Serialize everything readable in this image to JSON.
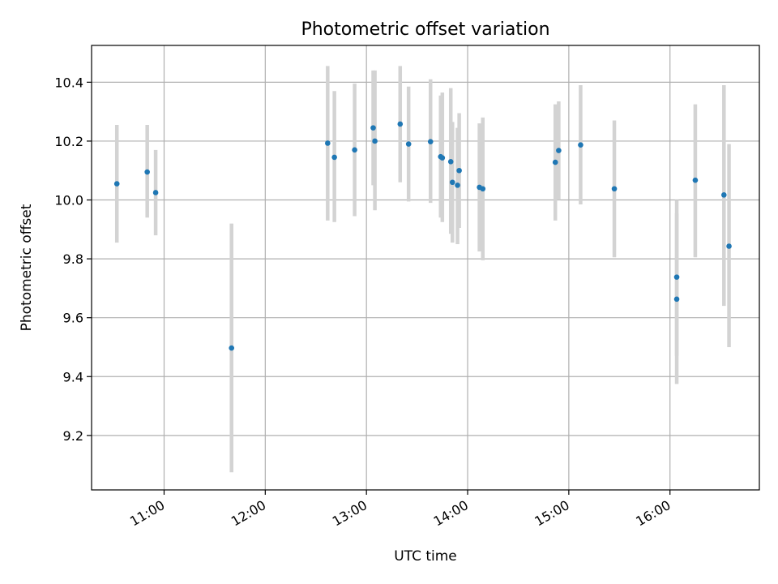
{
  "chart_data": {
    "type": "scatter",
    "title": "Photometric offset variation",
    "xlabel": "UTC time",
    "ylabel": "Photometric offset",
    "x_is_time": true,
    "xlim": [
      "10:17",
      "16:53"
    ],
    "ylim": [
      9.015,
      10.525
    ],
    "x_ticks": [
      "11:00",
      "12:00",
      "13:00",
      "14:00",
      "15:00",
      "16:00"
    ],
    "y_ticks": [
      9.2,
      9.4,
      9.6,
      9.8,
      10.0,
      10.2,
      10.4
    ],
    "y_tick_labels": [
      "9.2",
      "9.4",
      "9.6",
      "9.8",
      "10.0",
      "10.2",
      "10.4"
    ],
    "grid": true,
    "marker_color": "#1f77b4",
    "errorbar_color": "#d3d3d3",
    "points": [
      {
        "t": "10:32",
        "y": 10.055,
        "lo": 9.855,
        "hi": 10.255
      },
      {
        "t": "10:50",
        "y": 10.095,
        "lo": 9.94,
        "hi": 10.255
      },
      {
        "t": "10:55",
        "y": 10.025,
        "lo": 9.88,
        "hi": 10.17
      },
      {
        "t": "11:40",
        "y": 9.497,
        "lo": 9.075,
        "hi": 9.92
      },
      {
        "t": "12:37",
        "y": 10.193,
        "lo": 9.93,
        "hi": 10.455
      },
      {
        "t": "12:41",
        "y": 10.145,
        "lo": 9.925,
        "hi": 10.37
      },
      {
        "t": "12:53",
        "y": 10.17,
        "lo": 9.945,
        "hi": 10.395
      },
      {
        "t": "13:04",
        "y": 10.245,
        "lo": 10.05,
        "hi": 10.44
      },
      {
        "t": "13:05",
        "y": 10.2,
        "lo": 9.965,
        "hi": 10.44
      },
      {
        "t": "13:20",
        "y": 10.258,
        "lo": 10.06,
        "hi": 10.455
      },
      {
        "t": "13:25",
        "y": 10.19,
        "lo": 9.995,
        "hi": 10.385
      },
      {
        "t": "13:38",
        "y": 10.198,
        "lo": 9.99,
        "hi": 10.41
      },
      {
        "t": "13:44",
        "y": 10.147,
        "lo": 9.94,
        "hi": 10.355
      },
      {
        "t": "13:45",
        "y": 10.143,
        "lo": 9.925,
        "hi": 10.365
      },
      {
        "t": "13:50",
        "y": 10.13,
        "lo": 9.885,
        "hi": 10.38
      },
      {
        "t": "13:51",
        "y": 10.06,
        "lo": 9.855,
        "hi": 10.265
      },
      {
        "t": "13:54",
        "y": 10.05,
        "lo": 9.85,
        "hi": 10.245
      },
      {
        "t": "13:55",
        "y": 10.1,
        "lo": 9.905,
        "hi": 10.295
      },
      {
        "t": "14:07",
        "y": 10.043,
        "lo": 9.825,
        "hi": 10.26
      },
      {
        "t": "14:09",
        "y": 10.038,
        "lo": 9.795,
        "hi": 10.28
      },
      {
        "t": "14:52",
        "y": 10.128,
        "lo": 9.93,
        "hi": 10.325
      },
      {
        "t": "14:54",
        "y": 10.168,
        "lo": 10.0,
        "hi": 10.335
      },
      {
        "t": "15:07",
        "y": 10.187,
        "lo": 9.985,
        "hi": 10.39
      },
      {
        "t": "15:27",
        "y": 10.038,
        "lo": 9.805,
        "hi": 10.27
      },
      {
        "t": "16:04",
        "y": 9.663,
        "lo": 9.375,
        "hi": 9.955
      },
      {
        "t": "16:04",
        "y": 9.738,
        "lo": 9.47,
        "hi": 10.0
      },
      {
        "t": "16:15",
        "y": 10.067,
        "lo": 9.805,
        "hi": 10.325
      },
      {
        "t": "16:32",
        "y": 10.017,
        "lo": 9.64,
        "hi": 10.39
      },
      {
        "t": "16:35",
        "y": 9.843,
        "lo": 9.5,
        "hi": 10.19
      }
    ]
  }
}
